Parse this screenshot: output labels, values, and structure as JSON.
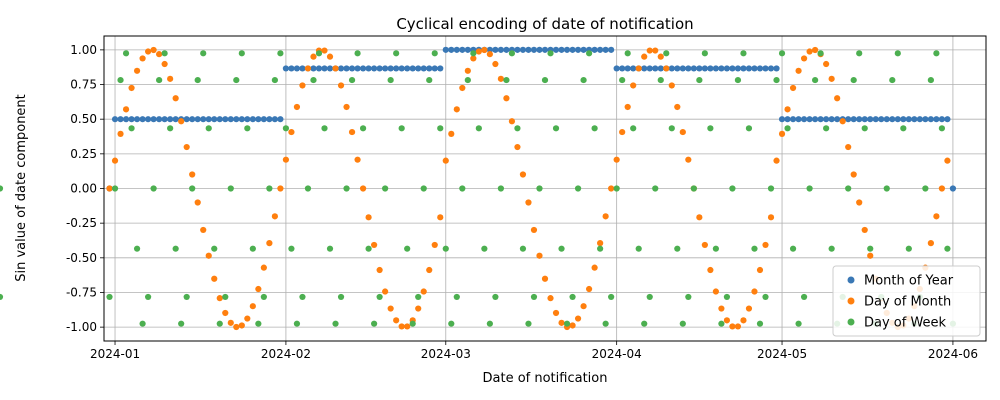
{
  "chart_data": {
    "type": "scatter",
    "title": "Cyclical encoding of date of notification",
    "xlabel": "Date of notification",
    "ylabel": "Sin value of date component",
    "x_range": [
      "2023-12-30",
      "2024-06-07"
    ],
    "ylim": [
      -1.1,
      1.1
    ],
    "x_ticks": [
      "2024-01",
      "2024-02",
      "2024-03",
      "2024-04",
      "2024-05",
      "2024-06"
    ],
    "y_ticks": [
      "-1.00",
      "-0.75",
      "-0.50",
      "-0.25",
      "0.00",
      "0.25",
      "0.50",
      "0.75",
      "1.00"
    ],
    "grid": true,
    "legend_position": "lower-right",
    "point_dates": [
      "2023-12-31",
      "2024-01-01",
      "2024-01-02",
      "2024-01-03",
      "2024-01-04",
      "2024-01-05",
      "2024-01-06",
      "2024-01-07",
      "2024-01-08",
      "2024-01-09",
      "2024-01-10",
      "2024-01-11",
      "2024-01-12",
      "2024-01-13",
      "2024-01-14",
      "2024-01-15",
      "2024-01-16",
      "2024-01-17",
      "2024-01-18",
      "2024-01-19",
      "2024-01-20",
      "2024-01-21",
      "2024-01-22",
      "2024-01-23",
      "2024-01-24",
      "2024-01-25",
      "2024-01-26",
      "2024-01-27",
      "2024-01-28",
      "2024-01-29",
      "2024-01-30",
      "2024-01-31",
      "2024-02-01",
      "2024-02-02",
      "2024-02-03",
      "2024-02-04",
      "2024-02-05",
      "2024-02-06",
      "2024-02-07",
      "2024-02-08",
      "2024-02-09",
      "2024-02-10",
      "2024-02-11",
      "2024-02-12",
      "2024-02-13",
      "2024-02-14",
      "2024-02-15",
      "2024-02-16",
      "2024-02-17",
      "2024-02-18",
      "2024-02-19",
      "2024-02-20",
      "2024-02-21",
      "2024-02-22",
      "2024-02-23",
      "2024-02-24",
      "2024-02-25",
      "2024-02-26",
      "2024-02-27",
      "2024-02-28",
      "2024-02-29",
      "2024-03-01",
      "2024-03-02",
      "2024-03-03",
      "2024-03-04",
      "2024-03-05",
      "2024-03-06",
      "2024-03-07",
      "2024-03-08",
      "2024-03-09",
      "2024-03-10",
      "2024-03-11",
      "2024-03-12",
      "2024-03-13",
      "2024-03-14",
      "2024-03-15",
      "2024-03-16",
      "2024-03-17",
      "2024-03-18",
      "2024-03-19",
      "2024-03-20",
      "2024-03-21",
      "2024-03-22",
      "2024-03-23",
      "2024-03-24",
      "2024-03-25",
      "2024-03-26",
      "2024-03-27",
      "2024-03-28",
      "2024-03-29",
      "2024-03-30",
      "2024-03-31",
      "2024-04-01",
      "2024-04-02",
      "2024-04-03",
      "2024-04-04",
      "2024-04-05",
      "2024-04-06",
      "2024-04-07",
      "2024-04-08",
      "2024-04-09",
      "2024-04-10",
      "2024-04-11",
      "2024-04-12",
      "2024-04-13",
      "2024-04-14",
      "2024-04-15",
      "2024-04-16",
      "2024-04-17",
      "2024-04-18",
      "2024-04-19",
      "2024-04-20",
      "2024-04-21",
      "2024-04-22",
      "2024-04-23",
      "2024-04-24",
      "2024-04-25",
      "2024-04-26",
      "2024-04-27",
      "2024-04-28",
      "2024-04-29",
      "2024-04-30",
      "2024-05-01",
      "2024-05-02",
      "2024-05-03",
      "2024-05-04",
      "2024-05-05",
      "2024-05-06",
      "2024-05-07",
      "2024-05-08",
      "2024-05-09",
      "2024-05-10",
      "2024-05-11",
      "2024-05-12",
      "2024-05-13",
      "2024-05-14",
      "2024-05-15",
      "2024-05-16",
      "2024-05-17",
      "2024-05-18",
      "2024-05-19",
      "2024-05-20",
      "2024-05-21",
      "2024-05-22",
      "2024-05-23",
      "2024-05-24",
      "2024-05-25",
      "2024-05-26",
      "2024-05-27",
      "2024-05-28",
      "2024-05-29",
      "2024-05-30",
      "2024-05-31",
      "2024-06-01"
    ],
    "series": [
      {
        "name": "Month of Year",
        "color": "#3a78b5",
        "values": [
          0.0,
          0.5,
          0.5,
          0.5,
          0.5,
          0.5,
          0.5,
          0.5,
          0.5,
          0.5,
          0.5,
          0.5,
          0.5,
          0.5,
          0.5,
          0.5,
          0.5,
          0.5,
          0.5,
          0.5,
          0.5,
          0.5,
          0.5,
          0.5,
          0.5,
          0.5,
          0.5,
          0.5,
          0.5,
          0.5,
          0.5,
          0.5,
          0.866,
          0.866,
          0.866,
          0.866,
          0.866,
          0.866,
          0.866,
          0.866,
          0.866,
          0.866,
          0.866,
          0.866,
          0.866,
          0.866,
          0.866,
          0.866,
          0.866,
          0.866,
          0.866,
          0.866,
          0.866,
          0.866,
          0.866,
          0.866,
          0.866,
          0.866,
          0.866,
          0.866,
          0.866,
          1.0,
          1.0,
          1.0,
          1.0,
          1.0,
          1.0,
          1.0,
          1.0,
          1.0,
          1.0,
          1.0,
          1.0,
          1.0,
          1.0,
          1.0,
          1.0,
          1.0,
          1.0,
          1.0,
          1.0,
          1.0,
          1.0,
          1.0,
          1.0,
          1.0,
          1.0,
          1.0,
          1.0,
          1.0,
          1.0,
          1.0,
          0.866,
          0.866,
          0.866,
          0.866,
          0.866,
          0.866,
          0.866,
          0.866,
          0.866,
          0.866,
          0.866,
          0.866,
          0.866,
          0.866,
          0.866,
          0.866,
          0.866,
          0.866,
          0.866,
          0.866,
          0.866,
          0.866,
          0.866,
          0.866,
          0.866,
          0.866,
          0.866,
          0.866,
          0.866,
          0.866,
          0.5,
          0.5,
          0.5,
          0.5,
          0.5,
          0.5,
          0.5,
          0.5,
          0.5,
          0.5,
          0.5,
          0.5,
          0.5,
          0.5,
          0.5,
          0.5,
          0.5,
          0.5,
          0.5,
          0.5,
          0.5,
          0.5,
          0.5,
          0.5,
          0.5,
          0.5,
          0.5,
          0.5,
          0.5,
          0.5,
          0.5,
          0.0
        ]
      },
      {
        "name": "Day of Month",
        "color": "#ff7f0e",
        "values": [
          0.0,
          0.201,
          0.394,
          0.571,
          0.725,
          0.849,
          0.938,
          0.988,
          0.999,
          0.969,
          0.898,
          0.791,
          0.651,
          0.485,
          0.299,
          0.101,
          -0.101,
          -0.299,
          -0.485,
          -0.651,
          -0.791,
          -0.898,
          -0.969,
          -0.999,
          -0.988,
          -0.938,
          -0.849,
          -0.725,
          -0.571,
          -0.394,
          -0.201,
          0.0,
          0.208,
          0.407,
          0.588,
          0.743,
          0.866,
          0.951,
          0.995,
          0.995,
          0.951,
          0.866,
          0.743,
          0.588,
          0.407,
          0.208,
          0.0,
          -0.208,
          -0.407,
          -0.588,
          -0.743,
          -0.866,
          -0.951,
          -0.995,
          -0.995,
          -0.951,
          -0.866,
          -0.743,
          -0.588,
          -0.407,
          -0.208,
          0.201,
          0.394,
          0.571,
          0.725,
          0.849,
          0.938,
          0.988,
          0.999,
          0.969,
          0.898,
          0.791,
          0.651,
          0.485,
          0.299,
          0.101,
          -0.101,
          -0.299,
          -0.485,
          -0.651,
          -0.791,
          -0.898,
          -0.969,
          -0.999,
          -0.988,
          -0.938,
          -0.849,
          -0.725,
          -0.571,
          -0.394,
          -0.201,
          0.0,
          0.208,
          0.407,
          0.588,
          0.743,
          0.866,
          0.951,
          0.995,
          0.995,
          0.951,
          0.866,
          0.743,
          0.588,
          0.407,
          0.208,
          0.0,
          -0.208,
          -0.407,
          -0.588,
          -0.743,
          -0.866,
          -0.951,
          -0.995,
          -0.995,
          -0.951,
          -0.866,
          -0.743,
          -0.588,
          -0.407,
          -0.208,
          0.201,
          0.394,
          0.571,
          0.725,
          0.849,
          0.938,
          0.988,
          0.999,
          0.969,
          0.898,
          0.791,
          0.651,
          0.485,
          0.299,
          0.101,
          -0.101,
          -0.299,
          -0.485,
          -0.651,
          -0.791,
          -0.898,
          -0.969,
          -0.999,
          -0.988,
          -0.938,
          -0.849,
          -0.725,
          -0.571,
          -0.394,
          -0.201,
          0.0,
          0.201
        ]
      },
      {
        "name": "Day of Week",
        "color": "#4caf50",
        "values": [
          -0.782,
          0.0,
          0.782,
          0.975,
          0.434,
          -0.434,
          -0.975,
          -0.782,
          0.0,
          0.782,
          0.975,
          0.434,
          -0.434,
          -0.975,
          -0.782,
          0.0,
          0.782,
          0.975,
          0.434,
          -0.434,
          -0.975,
          -0.782,
          0.0,
          0.782,
          0.975,
          0.434,
          -0.434,
          -0.975,
          -0.782,
          0.0,
          0.782,
          0.975,
          0.434,
          -0.434,
          -0.975,
          -0.782,
          0.0,
          0.782,
          0.975,
          0.434,
          -0.434,
          -0.975,
          -0.782,
          0.0,
          0.782,
          0.975,
          0.434,
          -0.434,
          -0.975,
          -0.782,
          0.0,
          0.782,
          0.975,
          0.434,
          -0.434,
          -0.975,
          -0.782,
          0.0,
          0.782,
          0.975,
          0.434,
          -0.434,
          -0.975,
          -0.782,
          0.0,
          0.782,
          0.975,
          0.434,
          -0.434,
          -0.975,
          -0.782,
          0.0,
          0.782,
          0.975,
          0.434,
          -0.434,
          -0.975,
          -0.782,
          0.0,
          0.782,
          0.975,
          0.434,
          -0.434,
          -0.975,
          -0.782,
          0.0,
          0.782,
          0.975,
          0.434,
          -0.434,
          -0.975,
          -0.782,
          0.0,
          0.782,
          0.975,
          0.434,
          -0.434,
          -0.975,
          -0.782,
          0.0,
          0.782,
          0.975,
          0.434,
          -0.434,
          -0.975,
          -0.782,
          0.0,
          0.782,
          0.975,
          0.434,
          -0.434,
          -0.975,
          -0.782,
          0.0,
          0.782,
          0.975,
          0.434,
          -0.434,
          -0.975,
          -0.782,
          0.0,
          0.782,
          0.975,
          0.434,
          -0.434,
          -0.975,
          -0.782,
          0.0,
          0.782,
          0.975,
          0.434,
          -0.434,
          -0.975,
          -0.782,
          0.0,
          0.782,
          0.975,
          0.434,
          -0.434,
          -0.975,
          -0.782,
          0.0,
          0.782,
          0.975,
          0.434,
          -0.434,
          -0.975,
          -0.782,
          0.0,
          0.782,
          0.975,
          0.434,
          -0.434,
          -0.975,
          -0.782,
          0.0
        ]
      }
    ]
  }
}
